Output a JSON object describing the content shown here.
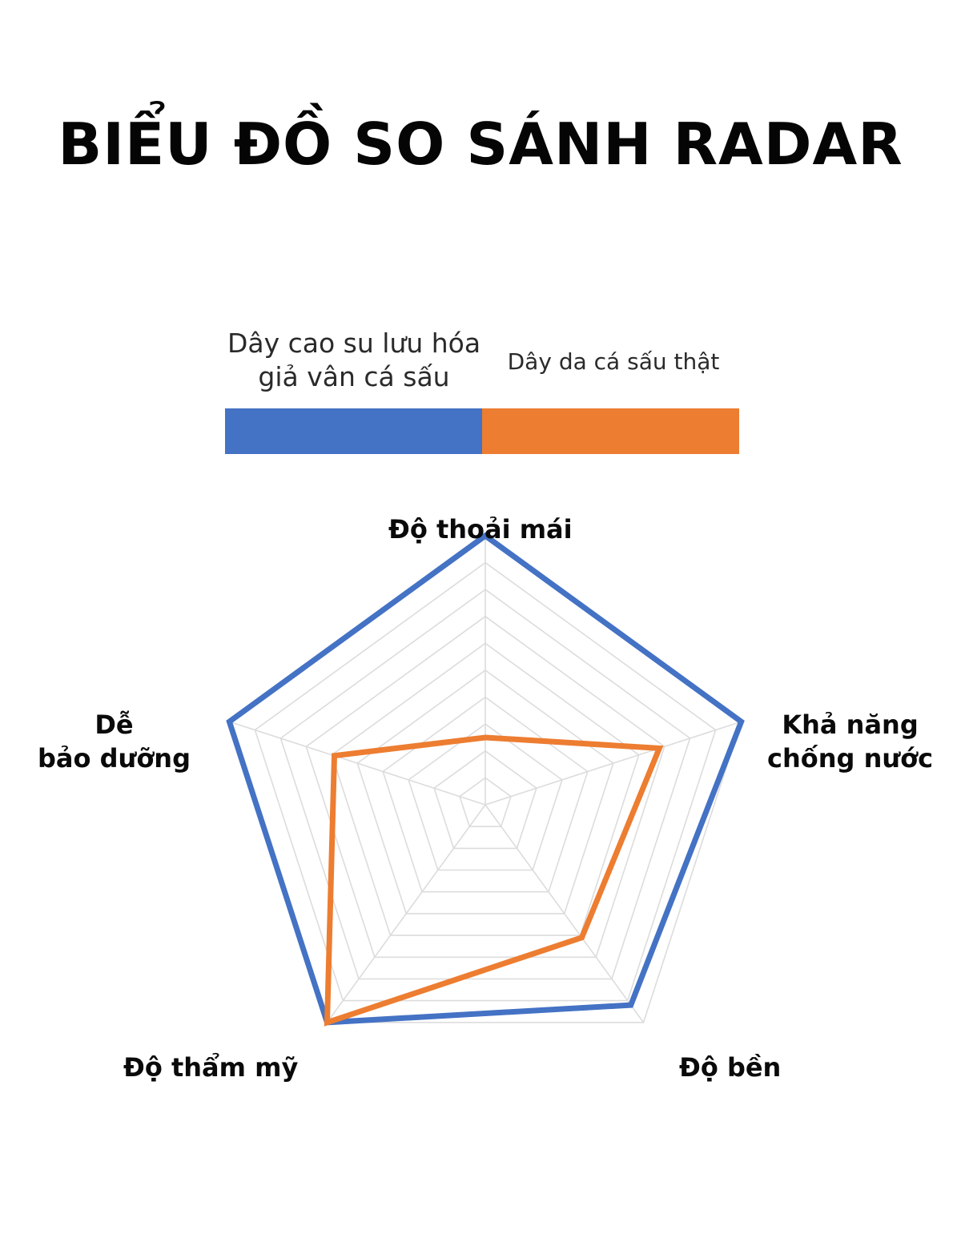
{
  "chart_data": {
    "type": "radar",
    "title": "BIỂU ĐỒ SO SÁNH RADAR",
    "axes": [
      "Độ thoải mái",
      "Khả năng\nchống nước",
      "Độ bền",
      "Độ thẩm mỹ",
      "Dễ\nbảo dưỡng"
    ],
    "rmax": 10,
    "rings": 10,
    "grid": true,
    "legend": "top",
    "series": [
      {
        "name": "Dây cao su lưu hóa\ngiả vân cá sấu",
        "color": "#4472c4",
        "values": [
          10,
          10,
          9.2,
          10,
          10
        ]
      },
      {
        "name": "Dây da cá sấu thật",
        "color": "#ed7d31",
        "values": [
          2.5,
          6.8,
          6.1,
          10,
          5.9
        ]
      }
    ]
  }
}
